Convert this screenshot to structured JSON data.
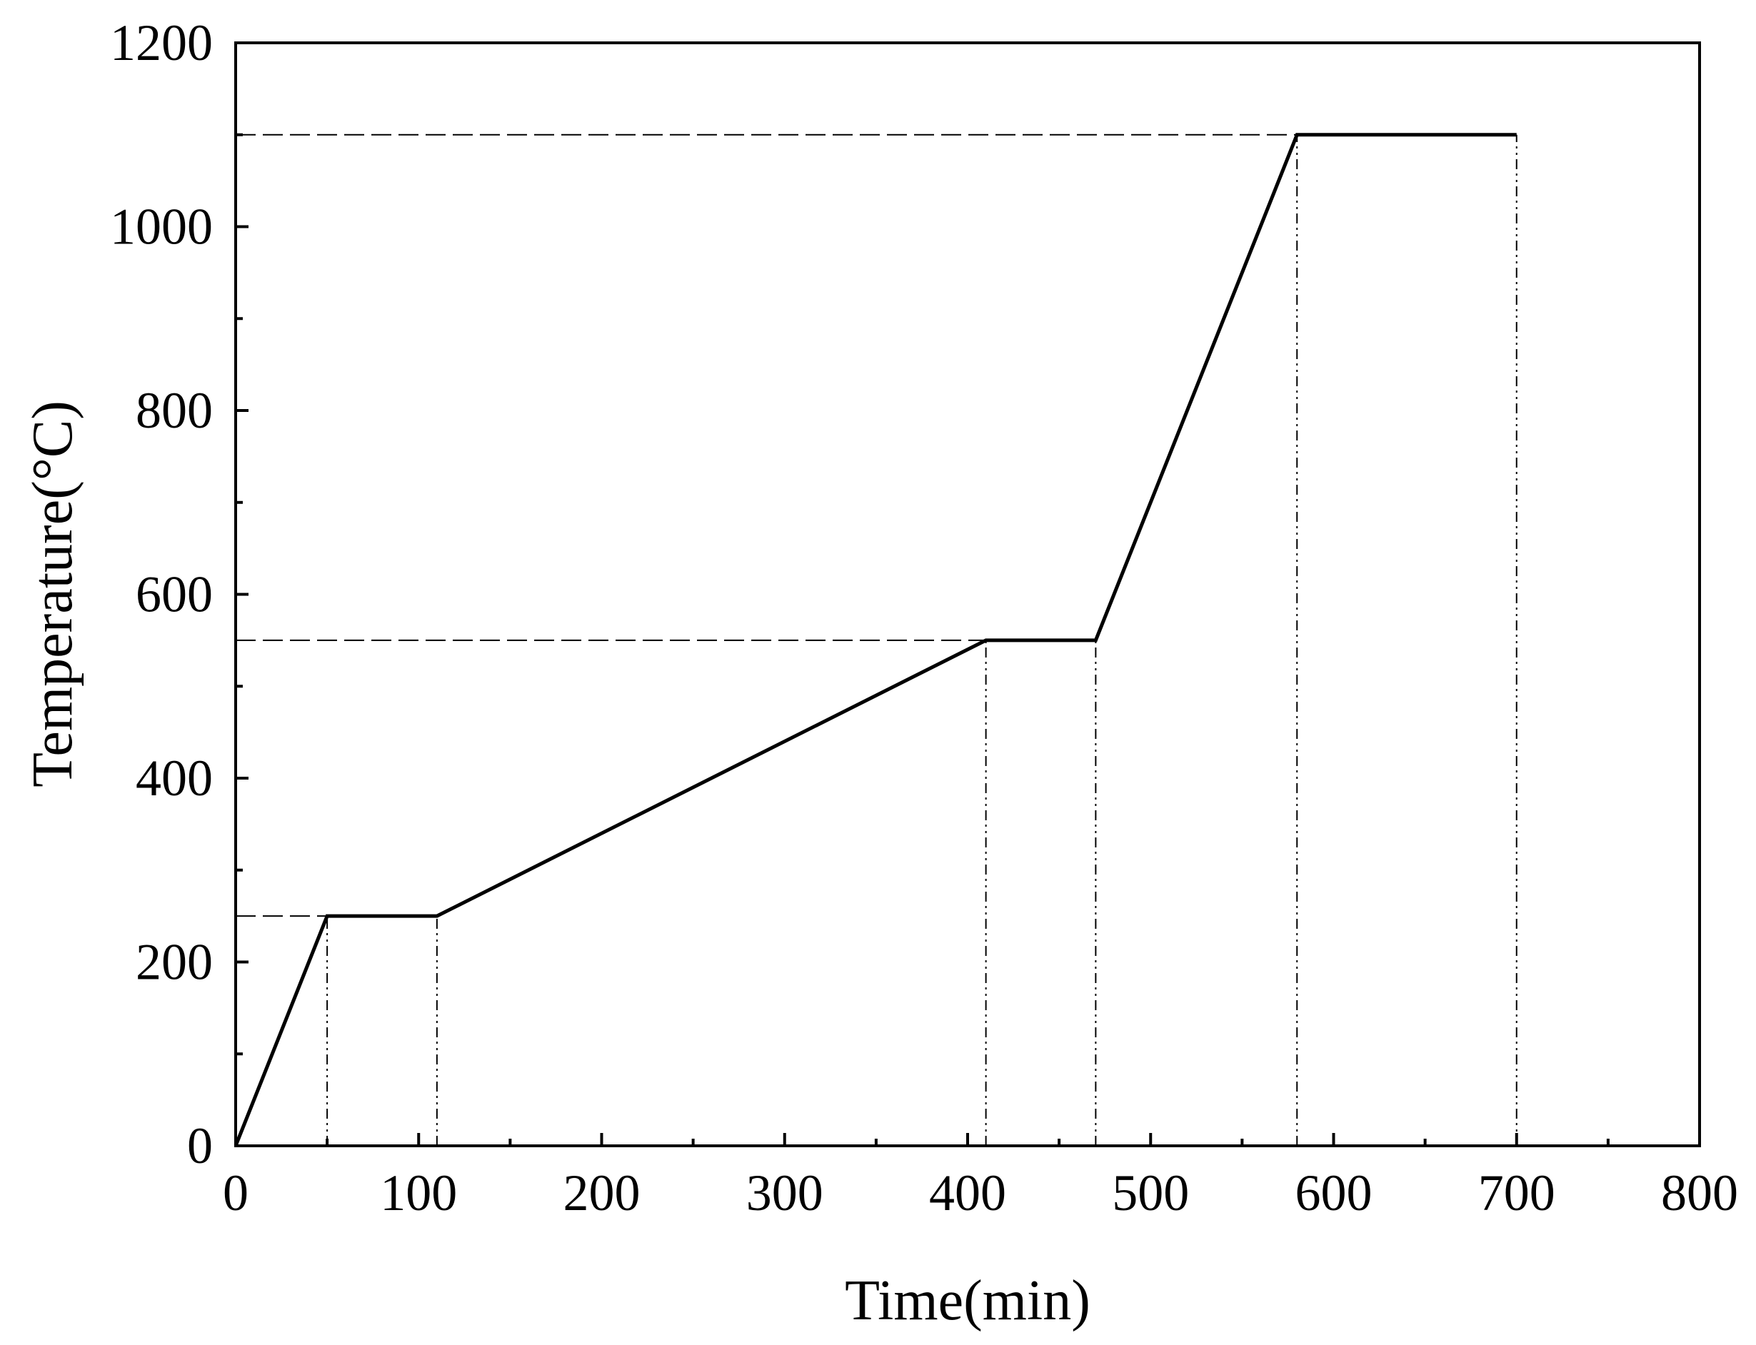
{
  "chart_data": {
    "type": "line",
    "title": "",
    "xlabel": "Time(min)",
    "ylabel": "Temperature(°C)",
    "xlim": [
      0,
      800
    ],
    "ylim": [
      0,
      1200
    ],
    "x_ticks": [
      0,
      100,
      200,
      300,
      400,
      500,
      600,
      700,
      800
    ],
    "x_tick_labels": [
      "0",
      "100",
      "200",
      "300",
      "400",
      "500",
      "600",
      "700",
      "800"
    ],
    "y_ticks": [
      0,
      200,
      400,
      600,
      800,
      1000,
      1200
    ],
    "y_tick_labels": [
      "0",
      "200",
      "400",
      "600",
      "800",
      "1000",
      "1200"
    ],
    "x_minor_ticks": [
      50,
      150,
      250,
      350,
      450,
      550,
      650,
      750
    ],
    "y_minor_ticks": [
      100,
      300,
      500,
      700,
      900,
      1100
    ],
    "grid": false,
    "legend": "none",
    "line_color": "#000000",
    "series": [
      {
        "x": [
          0,
          50,
          110,
          410,
          470,
          580,
          700
        ],
        "y": [
          0,
          250,
          250,
          550,
          550,
          1100,
          1100
        ]
      }
    ],
    "reference_lines": {
      "horizontal_dashed": [
        {
          "y": 250,
          "x_end": 50
        },
        {
          "y": 550,
          "x_end": 410
        },
        {
          "y": 1100,
          "x_end": 580
        }
      ],
      "vertical_dashdot": [
        {
          "x": 50,
          "y_top": 250
        },
        {
          "x": 110,
          "y_top": 250
        },
        {
          "x": 410,
          "y_top": 550
        },
        {
          "x": 470,
          "y_top": 550
        },
        {
          "x": 580,
          "y_top": 1100
        },
        {
          "x": 700,
          "y_top": 1100
        }
      ]
    }
  }
}
